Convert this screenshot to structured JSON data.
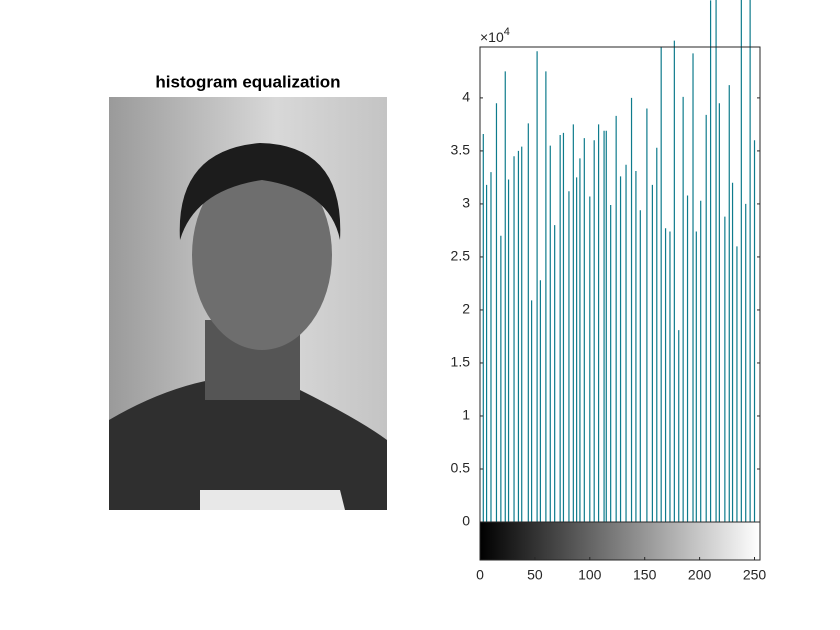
{
  "image_panel": {
    "title": "histogram equalization"
  },
  "chart_data": {
    "type": "stem",
    "x": [
      3,
      6,
      10,
      15,
      19,
      23,
      26,
      31,
      35,
      38,
      44,
      47,
      52,
      55,
      60,
      64,
      68,
      73,
      76,
      81,
      85,
      88,
      91,
      95,
      100,
      104,
      108,
      113,
      115,
      119,
      124,
      128,
      133,
      138,
      142,
      146,
      152,
      157,
      161,
      165,
      169,
      173,
      177,
      181,
      185,
      189,
      194,
      197,
      201,
      206,
      210,
      215,
      218,
      223,
      227,
      230,
      234,
      238,
      242,
      246,
      250
    ],
    "values": [
      3.66,
      3.18,
      3.3,
      3.95,
      2.7,
      4.25,
      3.23,
      3.45,
      3.5,
      3.54,
      3.76,
      2.09,
      4.44,
      2.28,
      4.25,
      3.55,
      2.8,
      3.65,
      3.67,
      3.12,
      3.75,
      3.25,
      3.43,
      3.62,
      3.07,
      3.6,
      3.75,
      3.69,
      3.69,
      2.99,
      3.83,
      3.26,
      3.37,
      4.0,
      3.31,
      2.94,
      3.9,
      3.18,
      3.53,
      4.48,
      2.77,
      2.74,
      4.54,
      1.81,
      4.01,
      3.08,
      4.42,
      2.74,
      3.03,
      3.84,
      4.92,
      4.95,
      3.95,
      2.88,
      4.12,
      3.2,
      2.6,
      4.95,
      3.0,
      5.0,
      3.6
    ],
    "color": "#0e7b8c",
    "xlim": [
      0,
      255
    ],
    "xticks": [
      0,
      50,
      100,
      150,
      200,
      250
    ],
    "ylim": [
      0,
      4.48
    ],
    "yticks": [
      0,
      0.5,
      1,
      1.5,
      2,
      2.5,
      3,
      3.5,
      4
    ],
    "y_exponent": {
      "base": "×10",
      "power": "4"
    }
  }
}
